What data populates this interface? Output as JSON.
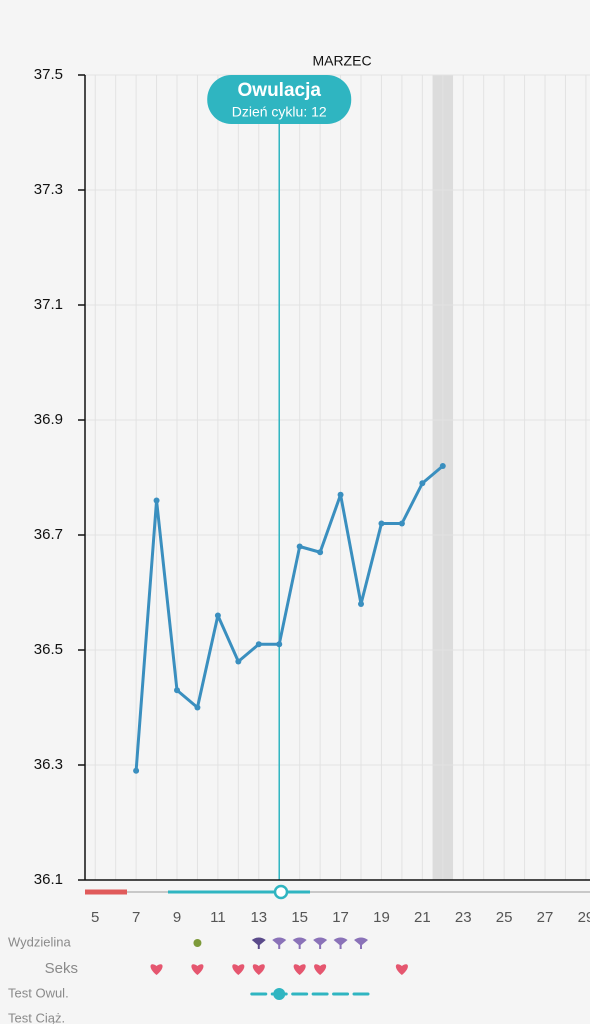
{
  "chart_data": {
    "type": "line",
    "title": "MARZEC",
    "x": [
      7,
      8,
      9,
      10,
      11,
      12,
      13,
      14,
      15,
      16,
      17,
      18,
      19,
      20,
      21,
      22
    ],
    "values": [
      36.29,
      36.76,
      36.43,
      36.4,
      36.56,
      36.48,
      36.51,
      36.51,
      36.68,
      36.67,
      36.77,
      36.58,
      36.72,
      36.72,
      36.79,
      36.82
    ],
    "color": "#3a8fbf",
    "xlim": [
      4.5,
      29.2
    ],
    "xticks": [
      5,
      7,
      9,
      11,
      13,
      15,
      17,
      19,
      21,
      23,
      25,
      27,
      29
    ],
    "ylim": [
      36.1,
      37.5
    ],
    "yticks": [
      36.1,
      36.3,
      36.5,
      36.7,
      36.9,
      37.1,
      37.3,
      37.5
    ],
    "grid": true,
    "ovulation": {
      "day": 14,
      "label": "Owulacja",
      "sublabel": "Dzień cyklu: 12"
    },
    "today": 22,
    "tracker": [
      {
        "label": "Wydzielina",
        "days": [
          10,
          13,
          14,
          15,
          16,
          17,
          18
        ]
      },
      {
        "label": "Seks",
        "days": [
          8,
          10,
          12,
          13,
          15,
          16,
          20
        ]
      },
      {
        "label": "Test Owul.",
        "days": [
          13,
          14,
          15,
          16,
          17,
          18
        ]
      },
      {
        "label": "Test Ciąż.",
        "days": []
      }
    ]
  }
}
